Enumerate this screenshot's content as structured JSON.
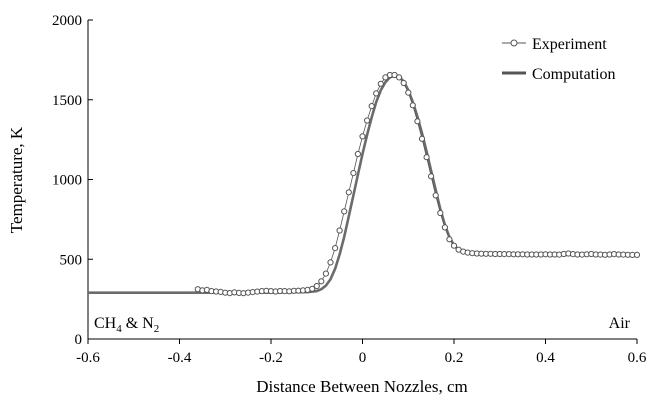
{
  "chart_data": {
    "type": "scatter",
    "xlabel": "Distance Between Nozzles, cm",
    "ylabel": "Temperature, K",
    "xlim": [
      -0.6,
      0.6
    ],
    "ylim": [
      0,
      2000
    ],
    "xticks": [
      -0.6,
      -0.4,
      -0.2,
      0,
      0.2,
      0.4,
      0.6
    ],
    "yticks": [
      0,
      500,
      1000,
      1500,
      2000
    ],
    "xtick_labels": [
      "-0.6",
      "-0.4",
      "-0.2",
      "0",
      "0.2",
      "0.4",
      "0.6"
    ],
    "ytick_labels": [
      "0",
      "500",
      "1000",
      "1500",
      "2000"
    ],
    "grid": false,
    "legend_position": "top-right",
    "colors": {
      "experiment": "#555555",
      "computation": "#6b6b6b"
    },
    "annotations": {
      "left": {
        "main": "CH",
        "sub1": "4",
        "mid": " & N",
        "sub2": "2"
      },
      "right": "Air"
    },
    "series": [
      {
        "name": "Experiment",
        "marker": "open-circle",
        "x": [
          -0.36,
          -0.35,
          -0.34,
          -0.33,
          -0.32,
          -0.31,
          -0.3,
          -0.29,
          -0.28,
          -0.27,
          -0.26,
          -0.25,
          -0.24,
          -0.23,
          -0.22,
          -0.21,
          -0.2,
          -0.19,
          -0.18,
          -0.17,
          -0.16,
          -0.15,
          -0.14,
          -0.13,
          -0.12,
          -0.11,
          -0.1,
          -0.09,
          -0.08,
          -0.07,
          -0.06,
          -0.05,
          -0.04,
          -0.03,
          -0.02,
          -0.01,
          0.0,
          0.01,
          0.02,
          0.03,
          0.04,
          0.05,
          0.06,
          0.07,
          0.08,
          0.09,
          0.1,
          0.11,
          0.12,
          0.13,
          0.14,
          0.15,
          0.16,
          0.17,
          0.18,
          0.19,
          0.2,
          0.21,
          0.22,
          0.23,
          0.24,
          0.25,
          0.26,
          0.27,
          0.28,
          0.29,
          0.3,
          0.31,
          0.32,
          0.33,
          0.34,
          0.35,
          0.36,
          0.37,
          0.38,
          0.39,
          0.4,
          0.41,
          0.42,
          0.43,
          0.44,
          0.45,
          0.46,
          0.47,
          0.48,
          0.49,
          0.5,
          0.51,
          0.52,
          0.53,
          0.54,
          0.55,
          0.56,
          0.57,
          0.58,
          0.59,
          0.6
        ],
        "y": [
          312,
          305,
          308,
          300,
          298,
          295,
          290,
          288,
          292,
          289,
          287,
          291,
          294,
          297,
          300,
          302,
          300,
          298,
          301,
          300,
          299,
          302,
          303,
          305,
          308,
          315,
          332,
          362,
          410,
          480,
          570,
          680,
          800,
          920,
          1040,
          1160,
          1270,
          1370,
          1460,
          1540,
          1600,
          1640,
          1655,
          1655,
          1640,
          1605,
          1545,
          1465,
          1365,
          1255,
          1140,
          1020,
          900,
          790,
          700,
          625,
          585,
          560,
          548,
          542,
          538,
          536,
          535,
          534,
          534,
          533,
          533,
          532,
          532,
          531,
          531,
          531,
          530,
          530,
          530,
          530,
          531,
          530,
          530,
          529,
          533,
          536,
          532,
          530,
          529,
          531,
          533,
          530,
          529,
          528,
          530,
          532,
          530,
          529,
          528,
          527,
          527
        ]
      },
      {
        "name": "Computation",
        "marker": "line",
        "x": [
          -0.6,
          -0.4,
          -0.2,
          -0.12,
          -0.1,
          -0.09,
          -0.08,
          -0.07,
          -0.06,
          -0.05,
          -0.04,
          -0.03,
          -0.02,
          -0.01,
          0.0,
          0.01,
          0.02,
          0.03,
          0.04,
          0.05,
          0.06,
          0.07,
          0.08,
          0.09,
          0.1,
          0.11,
          0.12,
          0.13,
          0.14,
          0.15,
          0.16,
          0.17,
          0.18,
          0.19,
          0.2,
          0.21,
          0.22,
          0.23,
          0.25,
          0.3,
          0.4,
          0.5,
          0.6
        ],
        "y": [
          290,
          290,
          291,
          294,
          300,
          312,
          335,
          375,
          440,
          530,
          640,
          770,
          900,
          1030,
          1160,
          1280,
          1390,
          1485,
          1560,
          1610,
          1640,
          1652,
          1645,
          1615,
          1560,
          1485,
          1395,
          1290,
          1175,
          1055,
          935,
          815,
          715,
          640,
          588,
          558,
          544,
          537,
          533,
          530,
          528,
          527,
          527
        ]
      }
    ]
  }
}
